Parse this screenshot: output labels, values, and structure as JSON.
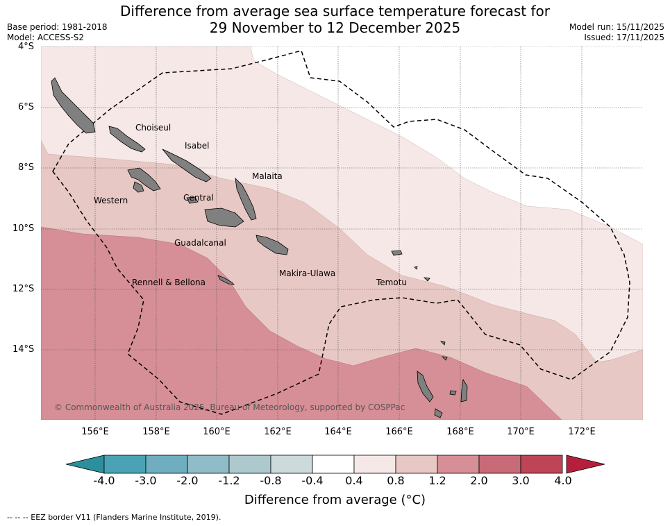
{
  "header": {
    "title_line1": "Difference from average sea surface temperature forecast for",
    "title_line2": "29 November to 12 December 2025",
    "base_period": "Base period: 1981-2018",
    "model": "Model: ACCESS-S2",
    "model_run": "Model run: 15/11/2025",
    "issued": "Issued: 17/11/2025"
  },
  "map": {
    "lat_labels": [
      "4°S",
      "6°S",
      "8°S",
      "10°S",
      "12°S",
      "14°S"
    ],
    "lon_labels": [
      "156°E",
      "158°E",
      "160°E",
      "162°E",
      "164°E",
      "166°E",
      "168°E",
      "170°E",
      "172°E"
    ],
    "places": [
      {
        "name": "Choiseul"
      },
      {
        "name": "Isabel"
      },
      {
        "name": "Malaita"
      },
      {
        "name": "Western"
      },
      {
        "name": "Central"
      },
      {
        "name": "Guadalcanal"
      },
      {
        "name": "Rennell & Bellona"
      },
      {
        "name": "Makira-Ulawa"
      },
      {
        "name": "Temotu"
      }
    ],
    "copyright": "© Commonwealth of Australia 2025, Bureau of Meteorology, supported by COSPPac",
    "colors": {
      "land": "#808080",
      "class_04_08": "#f5e8e7",
      "class_08_12": "#e8c8c4",
      "class_12_20": "#d68f96",
      "no_anomaly": "#ffffff"
    }
  },
  "colorbar": {
    "ticks": [
      "-4.0",
      "-3.0",
      "-2.0",
      "-1.2",
      "-0.8",
      "-0.4",
      "0.4",
      "0.8",
      "1.2",
      "2.0",
      "3.0",
      "4.0"
    ],
    "colors": [
      "#2c8f9e",
      "#4aa3b5",
      "#6faebf",
      "#8fbcc6",
      "#adc9cd",
      "#ccdadc",
      "#ffffff",
      "#f5e8e7",
      "#e8c8c4",
      "#d68f96",
      "#c86a78",
      "#bd4556",
      "#b51f3c"
    ],
    "title": "Difference from average (",
    "unit_symbol": "°C",
    "title_end": ")"
  },
  "footnote": "--  --  -- EEZ border V11 (Flanders Marine Institute, 2019)."
}
